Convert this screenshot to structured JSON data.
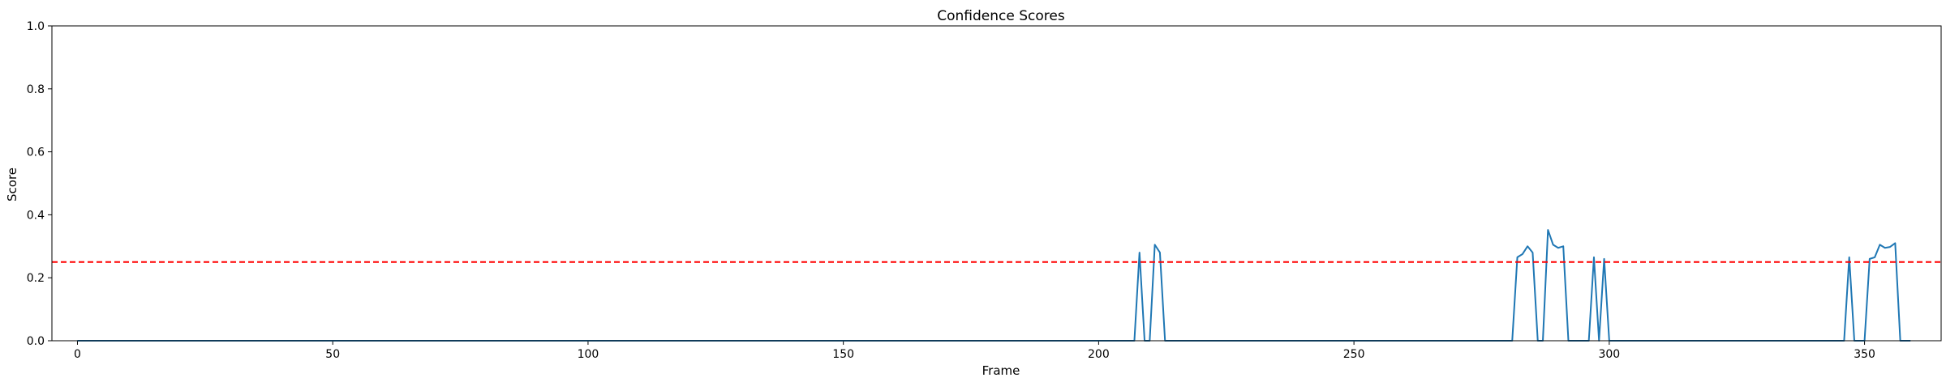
{
  "chart_data": {
    "type": "line",
    "title": "Confidence Scores",
    "xlabel": "Frame",
    "ylabel": "Score",
    "xlim": [
      -5,
      365
    ],
    "ylim": [
      0.0,
      1.0
    ],
    "xticks": [
      0,
      50,
      100,
      150,
      200,
      250,
      300,
      350
    ],
    "yticks": [
      0.0,
      0.2,
      0.4,
      0.6,
      0.8,
      1.0
    ],
    "xtick_labels": [
      "0",
      "50",
      "100",
      "150",
      "200",
      "250",
      "300",
      "350"
    ],
    "ytick_labels": [
      "0.0",
      "0.2",
      "0.4",
      "0.6",
      "0.8",
      "1.0"
    ],
    "grid": false,
    "legend": "none",
    "threshold": {
      "value": 0.25,
      "style": "dashed",
      "color": "#ff0000"
    },
    "series": [
      {
        "color": "#1f77b4",
        "points": [
          [
            0,
            0
          ],
          [
            207,
            0
          ],
          [
            208,
            0.28
          ],
          [
            209,
            0
          ],
          [
            210,
            0
          ],
          [
            211,
            0.305
          ],
          [
            212,
            0.28
          ],
          [
            213,
            0
          ],
          [
            281,
            0
          ],
          [
            282,
            0.265
          ],
          [
            283,
            0.275
          ],
          [
            284,
            0.3
          ],
          [
            285,
            0.28
          ],
          [
            286,
            0
          ],
          [
            287,
            0
          ],
          [
            288,
            0.352
          ],
          [
            289,
            0.305
          ],
          [
            290,
            0.295
          ],
          [
            291,
            0.3
          ],
          [
            292,
            0
          ],
          [
            296,
            0
          ],
          [
            297,
            0.265
          ],
          [
            298,
            0
          ],
          [
            299,
            0.26
          ],
          [
            300,
            0
          ],
          [
            346,
            0
          ],
          [
            347,
            0.265
          ],
          [
            348,
            0
          ],
          [
            350,
            0
          ],
          [
            351,
            0.26
          ],
          [
            352,
            0.265
          ],
          [
            353,
            0.305
          ],
          [
            354,
            0.295
          ],
          [
            355,
            0.298
          ],
          [
            356,
            0.31
          ],
          [
            357,
            0
          ],
          [
            359,
            0
          ]
        ]
      }
    ]
  }
}
